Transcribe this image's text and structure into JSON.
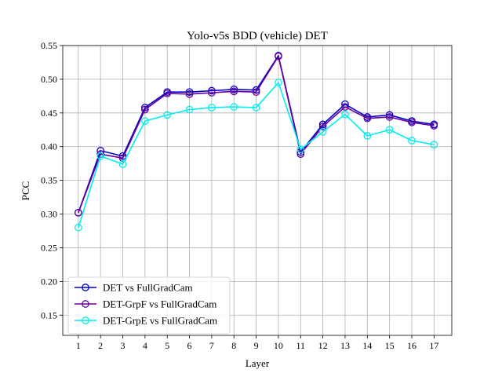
{
  "chart_data": {
    "type": "line",
    "title": "Yolo-v5s BDD (vehicle) DET",
    "xlabel": "Layer",
    "ylabel": "PCC",
    "x": [
      1,
      2,
      3,
      4,
      5,
      6,
      7,
      8,
      9,
      10,
      11,
      12,
      13,
      14,
      15,
      16,
      17
    ],
    "xlim": [
      0.3,
      17.8
    ],
    "ylim": [
      0.12,
      0.55
    ],
    "yticks": [
      0.15,
      0.2,
      0.25,
      0.3,
      0.35,
      0.4,
      0.45,
      0.5,
      0.55
    ],
    "ytick_labels": [
      "0.15",
      "0.20",
      "0.25",
      "0.30",
      "0.35",
      "0.40",
      "0.45",
      "0.50",
      "0.55"
    ],
    "xtick_labels": [
      "1",
      "2",
      "3",
      "4",
      "5",
      "6",
      "7",
      "8",
      "9",
      "10",
      "11",
      "12",
      "13",
      "14",
      "15",
      "16",
      "17"
    ],
    "grid": true,
    "legend_position": "lower-left",
    "series": [
      {
        "name": "DET vs FullGradCam",
        "color": "#0000cc",
        "marker": "open-circle",
        "values": [
          0.302,
          0.394,
          0.386,
          0.458,
          0.481,
          0.481,
          0.483,
          0.485,
          0.484,
          0.535,
          0.392,
          0.433,
          0.463,
          0.444,
          0.447,
          0.438,
          0.433
        ]
      },
      {
        "name": "DET-GrpF vs FullGradCam",
        "color": "#660099",
        "marker": "open-circle",
        "values": [
          0.302,
          0.389,
          0.383,
          0.455,
          0.479,
          0.478,
          0.48,
          0.482,
          0.481,
          0.534,
          0.389,
          0.43,
          0.459,
          0.442,
          0.444,
          0.436,
          0.431
        ]
      },
      {
        "name": "DET-GrpE vs FullGradCam",
        "color": "#00eeee",
        "marker": "open-circle",
        "values": [
          0.28,
          0.386,
          0.374,
          0.438,
          0.447,
          0.455,
          0.458,
          0.459,
          0.458,
          0.495,
          0.396,
          0.422,
          0.448,
          0.416,
          0.425,
          0.409,
          0.403
        ]
      }
    ]
  }
}
